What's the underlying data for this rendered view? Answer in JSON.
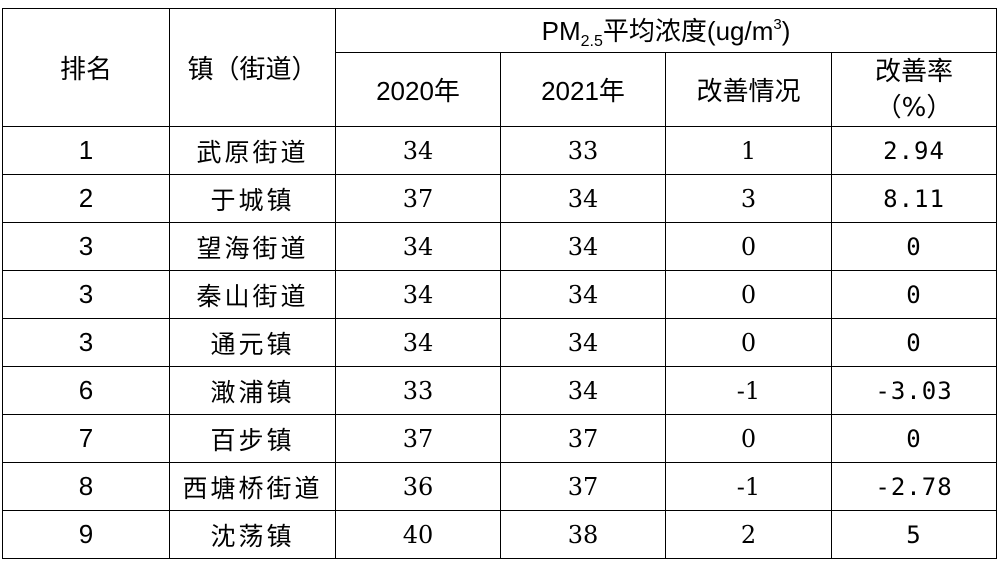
{
  "header": {
    "rank": "排名",
    "town": "镇（街道）",
    "pm_prefix": "PM",
    "pm_sub": "2.5",
    "pm_suffix": "平均浓度(ug/m",
    "pm_sup": "3",
    "pm_close": ")",
    "col_2020": "2020年",
    "col_2021": "2021年",
    "col_improve": "改善情况",
    "col_rate_line1": "改善率",
    "col_rate_line2": "（%）"
  },
  "rows": [
    {
      "rank": "1",
      "town": "武原街道",
      "y2020": "34",
      "y2021": "33",
      "improve": "1",
      "rate": "2.94"
    },
    {
      "rank": "2",
      "town": "于城镇",
      "y2020": "37",
      "y2021": "34",
      "improve": "3",
      "rate": "8.11"
    },
    {
      "rank": "3",
      "town": "望海街道",
      "y2020": "34",
      "y2021": "34",
      "improve": "0",
      "rate": "0"
    },
    {
      "rank": "3",
      "town": "秦山街道",
      "y2020": "34",
      "y2021": "34",
      "improve": "0",
      "rate": "0"
    },
    {
      "rank": "3",
      "town": "通元镇",
      "y2020": "34",
      "y2021": "34",
      "improve": "0",
      "rate": "0"
    },
    {
      "rank": "6",
      "town": "澉浦镇",
      "y2020": "33",
      "y2021": "34",
      "improve": "-1",
      "rate": "-3.03"
    },
    {
      "rank": "7",
      "town": "百步镇",
      "y2020": "37",
      "y2021": "37",
      "improve": "0",
      "rate": "0"
    },
    {
      "rank": "8",
      "town": "西塘桥街道",
      "y2020": "36",
      "y2021": "37",
      "improve": "-1",
      "rate": "-2.78"
    },
    {
      "rank": "9",
      "town": "沈荡镇",
      "y2020": "40",
      "y2021": "38",
      "improve": "2",
      "rate": "5"
    }
  ]
}
